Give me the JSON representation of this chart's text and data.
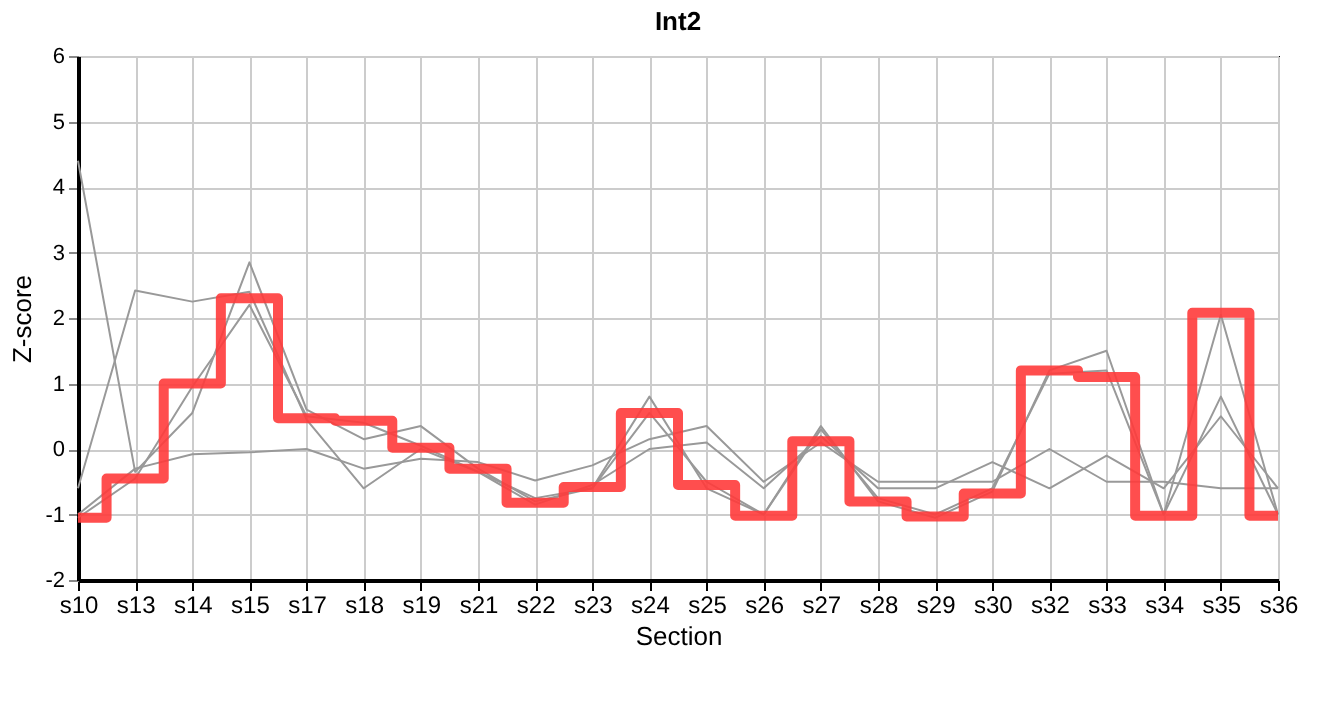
{
  "chart_data": {
    "type": "line",
    "title": "Int2",
    "xlabel": "Section",
    "ylabel": "Z-score",
    "categories": [
      "s10",
      "s13",
      "s14",
      "s15",
      "s17",
      "s18",
      "s19",
      "s21",
      "s22",
      "s23",
      "s24",
      "s25",
      "s26",
      "s27",
      "s28",
      "s29",
      "s30",
      "s32",
      "s33",
      "s34",
      "s35",
      "s36"
    ],
    "ylim": [
      -2,
      6
    ],
    "yticks": [
      -2,
      -1,
      0,
      1,
      2,
      3,
      4,
      5,
      6
    ],
    "grid": true,
    "marker": "none",
    "series": [
      {
        "color": "#999999",
        "values": [
          4.4,
          -0.35,
          0.55,
          2.85,
          0.6,
          0.15,
          0.35,
          -0.3,
          -0.8,
          -0.6,
          0.8,
          -0.6,
          -1.0,
          0.35,
          -0.8,
          -1.05,
          -0.65,
          1.2,
          1.5,
          -1.0,
          2.05,
          -1.0
        ]
      },
      {
        "color": "#999999",
        "values": [
          -0.6,
          2.42,
          2.25,
          2.4,
          0.45,
          -0.6,
          0.0,
          -0.35,
          -0.75,
          -0.6,
          0.55,
          -0.5,
          -1.0,
          0.3,
          -0.75,
          -1.0,
          -0.6,
          1.15,
          1.2,
          -1.0,
          0.8,
          -1.0
        ]
      },
      {
        "color": "#999999",
        "values": [
          -1.05,
          -0.45,
          0.95,
          2.2,
          0.5,
          0.4,
          0.05,
          -0.35,
          -0.85,
          -0.55,
          0.0,
          0.1,
          -0.6,
          0.2,
          -0.6,
          -0.6,
          -0.2,
          -0.6,
          -0.1,
          -0.6,
          0.5,
          -0.6
        ]
      },
      {
        "color": "#999999",
        "values": [
          -1.0,
          -0.3,
          -0.08,
          -0.05,
          0.0,
          -0.3,
          -0.15,
          -0.2,
          -0.48,
          -0.25,
          0.15,
          0.35,
          -0.5,
          0.1,
          -0.5,
          -0.5,
          -0.5,
          0.0,
          -0.5,
          -0.5,
          -0.6,
          -0.6
        ]
      },
      {
        "type": "step",
        "color": "#ff3b3b",
        "values": [
          -1.05,
          -0.45,
          1.0,
          2.3,
          0.47,
          0.43,
          0.02,
          -0.3,
          -0.82,
          -0.58,
          0.55,
          -0.55,
          -1.02,
          0.12,
          -0.8,
          -1.03,
          -0.68,
          1.2,
          1.1,
          -1.02,
          2.08,
          -1.02
        ]
      }
    ]
  }
}
